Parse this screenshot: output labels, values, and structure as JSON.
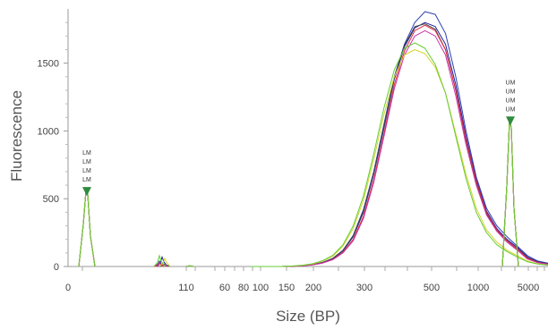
{
  "chart_data": {
    "type": "line",
    "title": "",
    "xlabel": "Size (BP)",
    "ylabel": "Fluorescence",
    "ylim": [
      0,
      1900
    ],
    "grid": false,
    "x_tick_labels": [
      "0",
      "110",
      "60",
      "80",
      "100",
      "150",
      "200",
      "300",
      "500",
      "1000",
      "5000"
    ],
    "y_tick_values": [
      0,
      500,
      1000,
      1500
    ],
    "lower_marker": {
      "labels": [
        "LM",
        "LM",
        "LM",
        "LM"
      ],
      "peak": 560
    },
    "upper_marker": {
      "labels": [
        "UM",
        "UM",
        "UM",
        "UM"
      ],
      "peak": 1080
    },
    "series": [
      {
        "color": "#2b3fb0",
        "values": [
          0,
          0,
          0,
          0,
          2,
          6,
          14,
          30,
          60,
          120,
          230,
          420,
          700,
          1050,
          1400,
          1640,
          1800,
          1880,
          1860,
          1720,
          1400,
          1000,
          660,
          430,
          300,
          220,
          150,
          80,
          40,
          25
        ]
      },
      {
        "color": "#20209a",
        "values": [
          0,
          0,
          0,
          0,
          2,
          6,
          13,
          28,
          56,
          115,
          220,
          400,
          680,
          1020,
          1380,
          1620,
          1760,
          1800,
          1770,
          1640,
          1340,
          960,
          640,
          410,
          280,
          200,
          140,
          70,
          35,
          20
        ]
      },
      {
        "color": "#444444",
        "values": [
          0,
          0,
          0,
          0,
          2,
          6,
          13,
          28,
          58,
          118,
          226,
          410,
          690,
          1030,
          1390,
          1630,
          1770,
          1790,
          1750,
          1600,
          1300,
          930,
          620,
          390,
          270,
          190,
          130,
          65,
          32,
          18
        ]
      },
      {
        "color": "#e0293a",
        "values": [
          0,
          0,
          0,
          0,
          2,
          5,
          12,
          26,
          52,
          105,
          200,
          370,
          640,
          980,
          1340,
          1590,
          1740,
          1780,
          1740,
          1600,
          1300,
          940,
          630,
          400,
          270,
          190,
          130,
          60,
          30,
          18
        ]
      },
      {
        "color": "#cc33aa",
        "values": [
          0,
          0,
          0,
          0,
          2,
          5,
          12,
          25,
          50,
          100,
          190,
          355,
          620,
          960,
          1310,
          1560,
          1700,
          1740,
          1700,
          1560,
          1260,
          900,
          600,
          380,
          260,
          180,
          120,
          55,
          28,
          16
        ]
      },
      {
        "color": "#d4d430",
        "values": [
          0,
          0,
          0,
          0,
          3,
          8,
          18,
          38,
          75,
          150,
          280,
          490,
          790,
          1120,
          1400,
          1560,
          1600,
          1570,
          1470,
          1280,
          980,
          680,
          430,
          270,
          180,
          120,
          80,
          40,
          20,
          12
        ]
      },
      {
        "color": "#66cc33",
        "values": [
          0,
          0,
          0,
          0,
          3,
          9,
          20,
          42,
          82,
          160,
          300,
          520,
          830,
          1170,
          1450,
          1610,
          1650,
          1610,
          1490,
          1280,
          960,
          650,
          400,
          250,
          160,
          110,
          70,
          35,
          18,
          10
        ]
      }
    ]
  }
}
